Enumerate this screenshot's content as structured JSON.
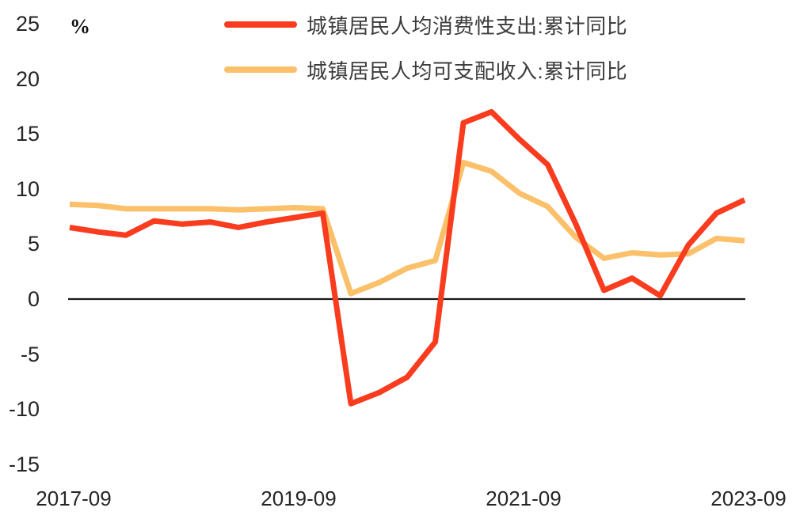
{
  "chart_data": {
    "type": "line",
    "title": "",
    "xlabel": "",
    "ylabel": "%",
    "ylim": [
      -15,
      25
    ],
    "grid": false,
    "legend_position": "top",
    "zero_line_color": "#1a1a1a",
    "tick_color": "#262626",
    "legend_text_color": "#3c3c3c",
    "y_ticks": [
      25,
      20,
      15,
      10,
      5,
      0,
      -5,
      -10,
      -15
    ],
    "x_tick_labels": [
      "2017-09",
      "2019-09",
      "2021-09",
      "2023-09"
    ],
    "categories": [
      "2017-09",
      "2017-12",
      "2018-03",
      "2018-06",
      "2018-09",
      "2018-12",
      "2019-03",
      "2019-06",
      "2019-09",
      "2019-12",
      "2020-03",
      "2020-06",
      "2020-09",
      "2020-12",
      "2021-03",
      "2021-06",
      "2021-09",
      "2021-12",
      "2022-03",
      "2022-06",
      "2022-09",
      "2022-12",
      "2023-03",
      "2023-06",
      "2023-09"
    ],
    "series": [
      {
        "name": "城镇居民人均消费性支出:累计同比",
        "color": "#F93B1E",
        "values": [
          6.5,
          6.1,
          5.8,
          7.1,
          6.8,
          7.0,
          6.5,
          7.0,
          7.4,
          7.8,
          -9.5,
          -8.5,
          -7.1,
          -3.9,
          16.0,
          17.0,
          14.5,
          12.2,
          6.8,
          0.8,
          1.9,
          0.3,
          4.9,
          7.8,
          9.0
        ]
      },
      {
        "name": "城镇居民人均可支配收入:累计同比",
        "color": "#FBC06A",
        "values": [
          8.6,
          8.5,
          8.2,
          8.2,
          8.2,
          8.2,
          8.1,
          8.2,
          8.3,
          8.2,
          0.5,
          1.5,
          2.8,
          3.5,
          12.4,
          11.6,
          9.6,
          8.4,
          5.6,
          3.7,
          4.2,
          4.0,
          4.1,
          5.5,
          5.3
        ]
      }
    ]
  }
}
